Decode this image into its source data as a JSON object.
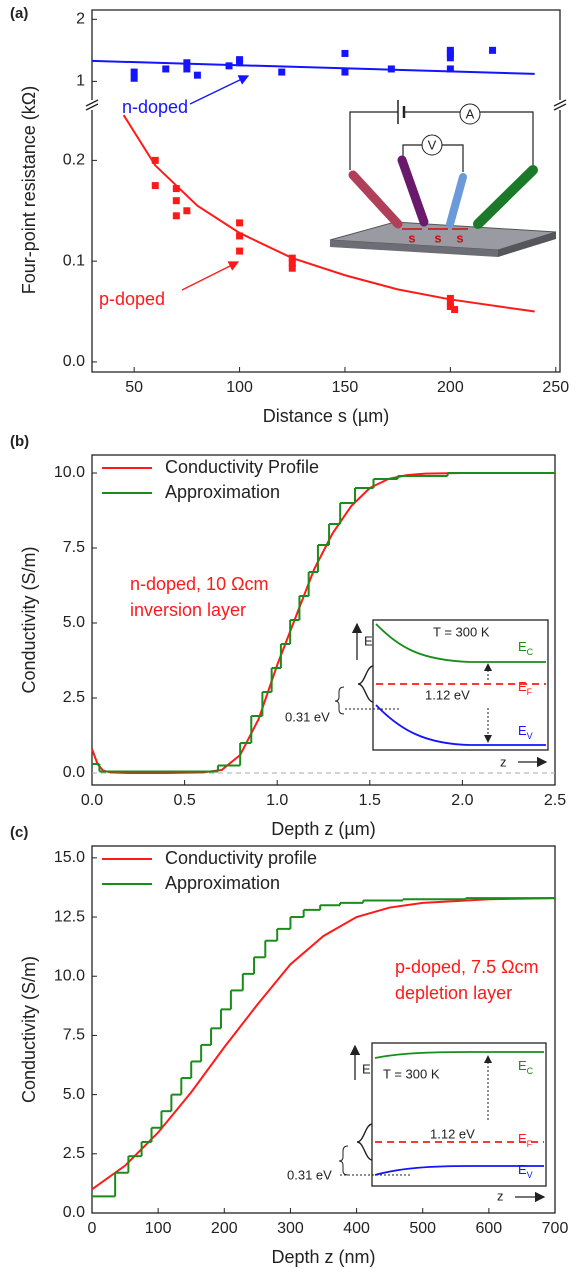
{
  "chart_data": [
    {
      "type": "scatter",
      "label": "(a)",
      "ylabel": "Four-point resistance (kΩ)",
      "xlabel": "Distance s (µm)",
      "xlim": [
        30,
        252
      ],
      "xticks": [
        50,
        100,
        150,
        200,
        250
      ],
      "ylim": [
        -0.01,
        0.25
      ],
      "yticks": [
        {
          "value": 0,
          "label": "0.0"
        },
        0.1,
        0.2
      ],
      "upper_ylim": [
        0.7,
        2.15
      ],
      "upper_yticks": [
        1,
        2
      ],
      "series": [
        {
          "name": "n-doped",
          "color": "#1414ff",
          "axis": "upper",
          "x": [
            50,
            50,
            65,
            75,
            75,
            80,
            95,
            100,
            100,
            120,
            150,
            150,
            172,
            200,
            200,
            200,
            200,
            220
          ],
          "values": [
            1.05,
            1.15,
            1.2,
            1.2,
            1.3,
            1.1,
            1.25,
            1.3,
            1.35,
            1.15,
            1.45,
            1.15,
            1.2,
            1.45,
            1.5,
            1.38,
            1.2,
            1.5
          ],
          "fit_x": [
            30,
            240
          ],
          "fit_values": [
            1.33,
            1.12
          ]
        },
        {
          "name": "p-doped",
          "color": "#ff1a1a",
          "axis": "lower",
          "x": [
            60,
            60,
            70,
            70,
            70,
            75,
            100,
            100,
            100,
            125,
            125,
            125,
            200,
            200,
            200,
            202
          ],
          "values": [
            0.2,
            0.175,
            0.172,
            0.16,
            0.145,
            0.15,
            0.138,
            0.125,
            0.11,
            0.103,
            0.098,
            0.093,
            0.063,
            0.058,
            0.055,
            0.052
          ],
          "fit_x": [
            45,
            60,
            80,
            100,
            125,
            150,
            175,
            200,
            240
          ],
          "fit_values": [
            0.245,
            0.195,
            0.155,
            0.128,
            0.103,
            0.086,
            0.072,
            0.062,
            0.05
          ]
        }
      ],
      "inset": {
        "ammeter": "A",
        "voltmeter": "V",
        "spacing_labels": [
          "s",
          "s",
          "s"
        ]
      }
    },
    {
      "type": "line",
      "label": "(b)",
      "ylabel": "Conductivity (S/m)",
      "xlabel": "Depth z (µm)",
      "xlim": [
        0,
        2.5
      ],
      "xticks": [
        {
          "value": 0,
          "label": "0.0"
        },
        0.5,
        {
          "value": 1,
          "label": "1.0"
        },
        1.5,
        {
          "value": 2,
          "label": "2.0"
        },
        2.5
      ],
      "ylim": [
        -0.4,
        10.6
      ],
      "yticks": [
        {
          "value": 0,
          "label": "0.0"
        },
        2.5,
        {
          "value": 5,
          "label": "5.0"
        },
        7.5,
        {
          "value": 10,
          "label": "10.0"
        }
      ],
      "reference_line": 0,
      "legend": "upper left",
      "series": [
        {
          "name": "Conductivity Profile",
          "color": "#ff1a1a",
          "x": [
            0,
            0.03,
            0.06,
            0.1,
            0.2,
            0.4,
            0.6,
            0.7,
            0.8,
            0.9,
            1.0,
            1.1,
            1.2,
            1.3,
            1.4,
            1.5,
            1.6,
            1.7,
            1.8,
            2.0,
            2.5
          ],
          "values": [
            0.8,
            0.3,
            0.08,
            0.02,
            0,
            0,
            0.02,
            0.1,
            0.6,
            1.8,
            3.6,
            5.2,
            6.8,
            8.0,
            8.9,
            9.5,
            9.8,
            9.93,
            9.98,
            10.0,
            10.0
          ]
        },
        {
          "name": "Approximation",
          "color": "#1a8c1a",
          "drawstyle": "steps-post",
          "x": [
            0,
            0.04,
            0.68,
            0.8,
            0.86,
            0.92,
            0.97,
            1.02,
            1.07,
            1.12,
            1.17,
            1.22,
            1.28,
            1.34,
            1.42,
            1.52,
            1.65,
            1.92
          ],
          "values": [
            0.3,
            0.05,
            0.25,
            1.0,
            1.9,
            2.7,
            3.5,
            4.3,
            5.1,
            5.9,
            6.7,
            7.6,
            8.3,
            9.0,
            9.5,
            9.8,
            9.9,
            10.0
          ]
        }
      ],
      "annotation": [
        "n-doped, 10 Ωcm",
        "inversion layer"
      ],
      "inset": {
        "temperature": "T = 300 K",
        "energy_axis": "E",
        "depth_axis": "z",
        "conduction_band": [
          "E",
          "C"
        ],
        "fermi_level": [
          "E",
          "F"
        ],
        "valence_band": [
          "E",
          "V"
        ],
        "band_gap": "1.12 eV",
        "offset": "0.31 eV"
      }
    },
    {
      "type": "line",
      "label": "(c)",
      "ylabel": "Conductivity (S/m)",
      "xlabel": "Depth z (nm)",
      "xlim": [
        0,
        700
      ],
      "xticks": [
        0,
        100,
        200,
        300,
        400,
        500,
        600,
        700
      ],
      "ylim": [
        0,
        15.5
      ],
      "yticks": [
        {
          "value": 0,
          "label": "0.0"
        },
        2.5,
        {
          "value": 5,
          "label": "5.0"
        },
        7.5,
        {
          "value": 10,
          "label": "10.0"
        },
        12.5,
        {
          "value": 15,
          "label": "15.0"
        }
      ],
      "legend": "upper left",
      "series": [
        {
          "name": "Conductivity profile",
          "color": "#ff1a1a",
          "x": [
            0,
            50,
            100,
            150,
            200,
            250,
            300,
            350,
            400,
            450,
            500,
            600,
            700
          ],
          "values": [
            1.0,
            2.0,
            3.4,
            5.1,
            7.0,
            8.8,
            10.5,
            11.7,
            12.5,
            12.9,
            13.1,
            13.25,
            13.3
          ]
        },
        {
          "name": "Approximation",
          "color": "#1a8c1a",
          "drawstyle": "steps-post",
          "x": [
            0,
            35,
            55,
            75,
            90,
            105,
            120,
            135,
            150,
            165,
            180,
            195,
            210,
            228,
            245,
            262,
            280,
            300,
            320,
            345,
            375,
            410,
            470,
            565
          ],
          "values": [
            0.7,
            1.7,
            2.4,
            3.0,
            3.6,
            4.3,
            5.0,
            5.7,
            6.4,
            7.1,
            7.8,
            8.6,
            9.4,
            10.1,
            10.8,
            11.5,
            12.0,
            12.5,
            12.8,
            13.0,
            13.1,
            13.2,
            13.25,
            13.3
          ]
        }
      ],
      "annotation": [
        "p-doped, 7.5 Ωcm",
        "depletion layer"
      ],
      "inset": {
        "temperature": "T = 300 K",
        "energy_axis": "E",
        "depth_axis": "z",
        "conduction_band": [
          "E",
          "C"
        ],
        "fermi_level": [
          "E",
          "F"
        ],
        "valence_band": [
          "E",
          "V"
        ],
        "band_gap": "1.12 eV",
        "offset": "0.31 eV"
      }
    }
  ]
}
